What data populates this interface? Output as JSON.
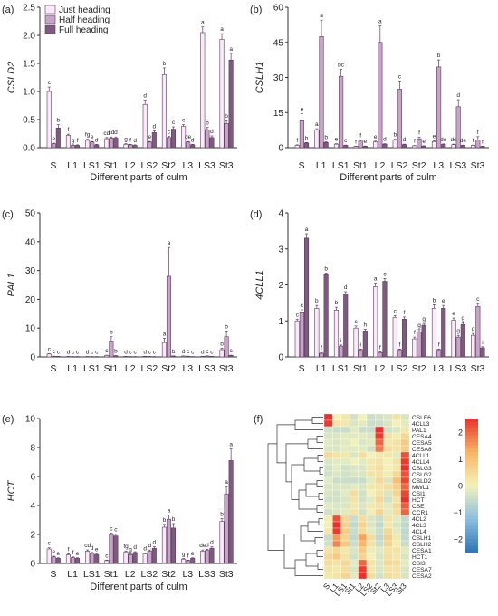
{
  "colors": {
    "just": "#fbe8fb",
    "half": "#c9a4c9",
    "full": "#7e5a7e",
    "axis": "#333333",
    "heat_low": "#2e74b5",
    "heat_mid": "#f2f2b8",
    "heat_high": "#e8312a"
  },
  "legend": [
    "Just heading",
    "Half heading",
    "Full heading"
  ],
  "chart_data": [
    {
      "panel": "(a)",
      "type": "bar",
      "ylabel": "CSLD2",
      "xlabel": "Different parts of culm",
      "categories": [
        "S",
        "L1",
        "LS1",
        "St1",
        "L2",
        "LS2",
        "St2",
        "L3",
        "LS3",
        "St3"
      ],
      "ylim": [
        0,
        2.5
      ],
      "yticks": [
        0,
        0.5,
        1.0,
        1.5,
        2.0,
        2.5
      ],
      "ytick_labels": [
        "0.0",
        "0.5",
        "1.0",
        "1.5",
        "2.0",
        "2.5"
      ],
      "series": [
        {
          "name": "Just heading",
          "values": [
            1.0,
            0.22,
            0.13,
            0.16,
            0.06,
            0.77,
            1.3,
            0.38,
            2.05,
            1.93
          ],
          "err": [
            0.08,
            0.02,
            0.02,
            0.02,
            0.01,
            0.08,
            0.12,
            0.03,
            0.1,
            0.1
          ],
          "letters": [
            "c",
            "f",
            "fg",
            "cd",
            "g",
            "d",
            "b",
            "e",
            "a",
            "a"
          ]
        },
        {
          "name": "Half heading",
          "values": [
            0.07,
            0.04,
            0.1,
            0.17,
            0.05,
            0.1,
            0.18,
            0.1,
            0.32,
            0.43
          ],
          "err": [
            0.01,
            0.01,
            0.01,
            0.02,
            0.01,
            0.01,
            0.02,
            0.01,
            0.04,
            0.05
          ],
          "letters": [
            "e",
            "g",
            "e",
            "cd",
            "f",
            "e",
            "c",
            "de",
            "b",
            "b"
          ]
        },
        {
          "name": "Full heading",
          "values": [
            0.35,
            0.04,
            0.05,
            0.17,
            0.04,
            0.27,
            0.33,
            0.05,
            0.18,
            1.56
          ],
          "err": [
            0.06,
            0.01,
            0.01,
            0.02,
            0.01,
            0.03,
            0.04,
            0.01,
            0.03,
            0.12
          ],
          "letters": [
            "b",
            "f",
            "d",
            "d",
            "d",
            "d",
            "c",
            "d",
            "d",
            "a"
          ]
        }
      ]
    },
    {
      "panel": "(b)",
      "type": "bar",
      "ylabel": "CSLH1",
      "xlabel": "Different parts of culm",
      "categories": [
        "S",
        "L1",
        "LS1",
        "St1",
        "L2",
        "LS2",
        "St2",
        "L3",
        "LS3",
        "St3"
      ],
      "ylim": [
        0,
        60
      ],
      "yticks": [
        0,
        15,
        30,
        45,
        60
      ],
      "ytick_labels": [
        "0",
        "15",
        "30",
        "45",
        "60"
      ],
      "series": [
        {
          "name": "Just heading",
          "values": [
            1.0,
            7.5,
            1.5,
            0.5,
            2.5,
            3.2,
            0.8,
            2.6,
            1.3,
            1.0
          ],
          "err": [
            0.2,
            0.6,
            0.2,
            0.1,
            0.3,
            0.4,
            0.1,
            0.3,
            0.2,
            0.1
          ],
          "letters": [
            "f",
            "a",
            "e",
            "f",
            "e",
            "b",
            "f",
            "e",
            "de",
            "f"
          ]
        },
        {
          "name": "Half heading",
          "values": [
            11.5,
            47.5,
            30.5,
            2.8,
            45.0,
            25.0,
            3.8,
            34.5,
            17.5,
            3.2
          ],
          "err": [
            3.0,
            7.0,
            3.0,
            0.5,
            7.0,
            3.5,
            0.6,
            3.0,
            3.0,
            1.5
          ],
          "letters": [
            "e",
            "a",
            "bc",
            "f",
            "a",
            "c",
            "f",
            "b",
            "d",
            "f"
          ]
        },
        {
          "name": "Full heading",
          "values": [
            2.0,
            2.2,
            1.0,
            0.6,
            1.5,
            1.3,
            0.7,
            1.4,
            1.0,
            0.5
          ],
          "err": [
            0.2,
            0.3,
            0.1,
            0.1,
            0.2,
            0.2,
            0.1,
            0.2,
            0.1,
            0.1
          ],
          "letters": [
            "b",
            "b",
            "c",
            "e",
            "d",
            "d",
            "e",
            "de",
            "de",
            "f"
          ]
        }
      ]
    },
    {
      "panel": "(c)",
      "type": "bar",
      "ylabel": "PAL1",
      "xlabel": "",
      "categories": [
        "S",
        "L1",
        "LS1",
        "St1",
        "L2",
        "LS2",
        "St2",
        "L3",
        "LS3",
        "St3"
      ],
      "ylim": [
        0,
        50
      ],
      "yticks": [
        0,
        10,
        20,
        30,
        40,
        50
      ],
      "ytick_labels": [
        "0",
        "10",
        "20",
        "30",
        "40",
        "50"
      ],
      "series": [
        {
          "name": "Just heading",
          "values": [
            1.0,
            0.15,
            0.12,
            0.5,
            0.2,
            0.2,
            5.0,
            0.3,
            0.2,
            2.5
          ],
          "err": [
            0.1,
            0.02,
            0.02,
            0.1,
            0.02,
            0.02,
            1.5,
            0.05,
            0.02,
            0.5
          ],
          "letters": [
            "c",
            "d",
            "d",
            "c",
            "d",
            "d",
            "a",
            "d",
            "d",
            "b"
          ]
        },
        {
          "name": "Half heading",
          "values": [
            0.2,
            0.1,
            0.1,
            5.5,
            0.1,
            0.15,
            28.0,
            0.2,
            0.3,
            7.0
          ],
          "err": [
            0.05,
            0.02,
            0.02,
            1.5,
            0.02,
            0.02,
            10.0,
            0.05,
            0.05,
            2.0
          ],
          "letters": [
            "c",
            "c",
            "c",
            "b",
            "c",
            "c",
            "a",
            "c",
            "c",
            "b"
          ]
        },
        {
          "name": "Full heading",
          "values": [
            0.2,
            0.1,
            0.1,
            0.4,
            0.1,
            0.1,
            0.3,
            0.1,
            0.2,
            0.5
          ],
          "err": [
            0.02,
            0.02,
            0.02,
            0.05,
            0.02,
            0.02,
            0.05,
            0.02,
            0.02,
            0.1
          ],
          "letters": [
            "c",
            "c",
            "c",
            "b",
            "c",
            "c",
            "b",
            "c",
            "c",
            "c"
          ]
        }
      ]
    },
    {
      "panel": "(d)",
      "type": "bar",
      "ylabel": "4CLL1",
      "xlabel": "",
      "categories": [
        "S",
        "L1",
        "LS1",
        "St1",
        "L2",
        "LS2",
        "St2",
        "L3",
        "LS3",
        "St3"
      ],
      "ylim": [
        0,
        4
      ],
      "yticks": [
        0,
        1,
        2,
        3,
        4
      ],
      "ytick_labels": [
        "0",
        "1",
        "2",
        "3",
        "4"
      ],
      "series": [
        {
          "name": "Just heading",
          "values": [
            1.0,
            1.35,
            1.3,
            0.8,
            1.95,
            1.1,
            0.5,
            1.35,
            1.02,
            0.6
          ],
          "err": [
            0.05,
            0.08,
            0.08,
            0.06,
            0.1,
            0.05,
            0.05,
            0.1,
            0.06,
            0.05
          ],
          "letters": [
            "c",
            "b",
            "b",
            "c",
            "a",
            "c",
            "f",
            "b",
            "e",
            "g"
          ]
        },
        {
          "name": "Half heading",
          "values": [
            1.25,
            0.1,
            0.3,
            0.2,
            0.12,
            0.2,
            0.7,
            0.2,
            0.55,
            1.4
          ],
          "err": [
            0.06,
            0.02,
            0.03,
            0.02,
            0.02,
            0.02,
            0.06,
            0.02,
            0.05,
            0.08
          ],
          "letters": [
            "c",
            "f",
            "i",
            "i",
            "f",
            "f",
            "g",
            "f",
            "g",
            "c"
          ]
        },
        {
          "name": "Full heading",
          "values": [
            3.3,
            2.28,
            1.75,
            0.72,
            2.1,
            1.05,
            0.88,
            1.35,
            0.9,
            0.25
          ],
          "err": [
            0.12,
            0.05,
            0.06,
            0.05,
            0.08,
            0.06,
            0.05,
            0.08,
            0.05,
            0.03
          ],
          "letters": [
            "a",
            "b",
            "d",
            "h",
            "c",
            "f",
            "g",
            "e",
            "g",
            "i"
          ]
        }
      ]
    },
    {
      "panel": "(e)",
      "type": "bar",
      "ylabel": "HCT",
      "xlabel": "Different parts of culm",
      "categories": [
        "S",
        "L1",
        "LS1",
        "St1",
        "L2",
        "LS2",
        "St2",
        "L3",
        "LS3",
        "St3"
      ],
      "ylim": [
        0,
        10
      ],
      "yticks": [
        0,
        2,
        4,
        6,
        8,
        10
      ],
      "ytick_labels": [
        "0",
        "2",
        "4",
        "6",
        "8",
        "10"
      ],
      "series": [
        {
          "name": "Just heading",
          "values": [
            1.0,
            0.6,
            0.85,
            0.2,
            0.8,
            0.65,
            2.5,
            0.3,
            0.85,
            2.9
          ],
          "err": [
            0.08,
            0.06,
            0.08,
            0.03,
            0.06,
            0.06,
            0.2,
            0.04,
            0.08,
            0.2
          ],
          "letters": [
            "c",
            "f",
            "cd",
            "c",
            "fg",
            "d",
            "b",
            "g",
            "de",
            "b"
          ]
        },
        {
          "name": "Half heading",
          "values": [
            0.45,
            0.4,
            0.7,
            2.0,
            0.6,
            0.85,
            3.05,
            0.2,
            0.9,
            4.8
          ],
          "err": [
            0.05,
            0.05,
            0.06,
            0.1,
            0.05,
            0.08,
            0.3,
            0.03,
            0.08,
            0.5
          ],
          "letters": [
            "e",
            "f",
            "d",
            "c",
            "g",
            "d",
            "a",
            "f",
            "d",
            "a"
          ]
        },
        {
          "name": "Full heading",
          "values": [
            0.35,
            0.35,
            0.6,
            1.9,
            0.75,
            1.05,
            2.45,
            0.35,
            1.05,
            7.1
          ],
          "err": [
            0.04,
            0.04,
            0.05,
            0.12,
            0.06,
            0.1,
            0.3,
            0.04,
            0.1,
            0.8
          ],
          "letters": [
            "e",
            "e",
            "e",
            "c",
            "d",
            "d",
            "b",
            "e",
            "d",
            "a"
          ]
        }
      ]
    },
    {
      "panel": "(f)",
      "type": "heatmap",
      "columns": [
        "S",
        "L1",
        "LS1",
        "St1",
        "L2",
        "LS2",
        "St2",
        "L3",
        "LS3",
        "St3"
      ],
      "rows": [
        "CSLE6",
        "4CLL3",
        "PAL1",
        "CESA4",
        "CESA5",
        "CESA8",
        "4CLL1",
        "4CLL4",
        "CSLG3",
        "CSLG2",
        "CSLD2",
        "MWL1",
        "CSI1",
        "HCT",
        "CSE",
        "CCR1",
        "4CL2",
        "4CL3",
        "4CL4",
        "CSLH1",
        "CSLH2",
        "CESA1",
        "HCT1",
        "CSI3",
        "CESA7",
        "CESA2"
      ],
      "colorbar": {
        "min": -2.5,
        "max": 2.5,
        "ticks": [
          2,
          1,
          0,
          -1,
          -2
        ],
        "tick_labels": [
          "2",
          "1",
          "0",
          "−1",
          "−2"
        ]
      },
      "values": [
        [
          2.6,
          0.0,
          0.2,
          -0.4,
          0.0,
          -0.5,
          -0.4,
          -0.3,
          0.3,
          -0.3
        ],
        [
          2.4,
          0.3,
          0.2,
          -0.3,
          -0.2,
          -0.5,
          -0.5,
          -0.3,
          0.0,
          -0.2
        ],
        [
          -0.4,
          -0.5,
          -0.5,
          -0.2,
          -0.5,
          -0.5,
          2.8,
          -0.4,
          -0.3,
          0.2
        ],
        [
          -0.3,
          -0.3,
          -0.2,
          -0.2,
          -0.2,
          -0.3,
          2.4,
          0.3,
          0.1,
          0.5
        ],
        [
          -0.2,
          -0.3,
          -0.2,
          0.0,
          -0.3,
          -0.2,
          2.0,
          0.2,
          0.3,
          0.8
        ],
        [
          -0.3,
          -0.3,
          -0.2,
          -0.2,
          -0.2,
          -0.4,
          1.8,
          0.4,
          0.3,
          0.7
        ],
        [
          0.5,
          0.3,
          0.2,
          -0.3,
          0.4,
          0.0,
          0.2,
          0.2,
          -0.2,
          2.2
        ],
        [
          -0.3,
          -0.2,
          -0.2,
          0.0,
          -0.2,
          0.2,
          0.3,
          0.0,
          0.3,
          2.4
        ],
        [
          -0.4,
          -0.2,
          -0.4,
          -0.3,
          -0.3,
          0.2,
          0.4,
          0.0,
          0.2,
          2.5
        ],
        [
          -0.4,
          -0.3,
          -0.4,
          -0.3,
          -0.3,
          0.3,
          0.3,
          0.1,
          0.5,
          2.2
        ],
        [
          -0.2,
          -0.5,
          -0.5,
          -0.5,
          -0.5,
          -0.2,
          0.5,
          -0.3,
          1.0,
          2.3
        ],
        [
          -0.3,
          -0.3,
          -0.3,
          -0.2,
          -0.3,
          0.2,
          0.3,
          0.4,
          0.7,
          2.0
        ],
        [
          -0.3,
          -0.4,
          -0.2,
          0.4,
          -0.4,
          0.0,
          0.3,
          -0.3,
          0.6,
          2.3
        ],
        [
          -0.4,
          -0.4,
          -0.3,
          0.3,
          -0.4,
          -0.2,
          0.5,
          -0.4,
          0.3,
          2.5
        ],
        [
          -0.2,
          -0.3,
          -0.3,
          0.2,
          -0.3,
          0.2,
          0.3,
          -0.2,
          0.5,
          2.1
        ],
        [
          -0.4,
          -0.3,
          -0.2,
          0.3,
          -0.4,
          0.1,
          0.6,
          -0.2,
          0.4,
          2.0
        ],
        [
          0.1,
          2.2,
          0.5,
          -0.5,
          0.4,
          -0.3,
          -0.5,
          0.3,
          -0.2,
          -0.6
        ],
        [
          0.0,
          2.5,
          0.6,
          -0.6,
          0.6,
          -0.3,
          -0.6,
          0.2,
          -0.3,
          -0.6
        ],
        [
          0.2,
          2.4,
          0.7,
          -0.5,
          0.5,
          -0.2,
          -0.5,
          0.5,
          -0.2,
          -0.6
        ],
        [
          -0.5,
          1.5,
          0.6,
          -0.6,
          1.4,
          0.4,
          -0.6,
          0.7,
          0.2,
          -0.6
        ],
        [
          -0.4,
          1.7,
          0.8,
          -0.5,
          1.2,
          0.3,
          -0.5,
          0.6,
          0.1,
          -0.5
        ],
        [
          0.3,
          0.5,
          0.2,
          -0.3,
          0.8,
          -0.1,
          -0.2,
          0.3,
          0.3,
          -0.2
        ],
        [
          0.5,
          0.8,
          0.3,
          -0.4,
          0.6,
          0.0,
          -0.3,
          0.4,
          0.2,
          -0.3
        ],
        [
          0.4,
          0.3,
          0.5,
          -0.2,
          2.0,
          0.3,
          -0.3,
          0.5,
          0.4,
          -0.2
        ],
        [
          0.3,
          0.2,
          0.4,
          -0.3,
          2.4,
          0.2,
          -0.3,
          0.3,
          0.3,
          -0.3
        ],
        [
          0.2,
          0.3,
          0.6,
          -0.2,
          2.5,
          0.4,
          -0.4,
          0.4,
          0.3,
          -0.3
        ]
      ]
    }
  ],
  "panel_labels": {
    "a": "(a)",
    "b": "(b)",
    "c": "(c)",
    "d": "(d)",
    "e": "(e)",
    "f": "(f)"
  }
}
